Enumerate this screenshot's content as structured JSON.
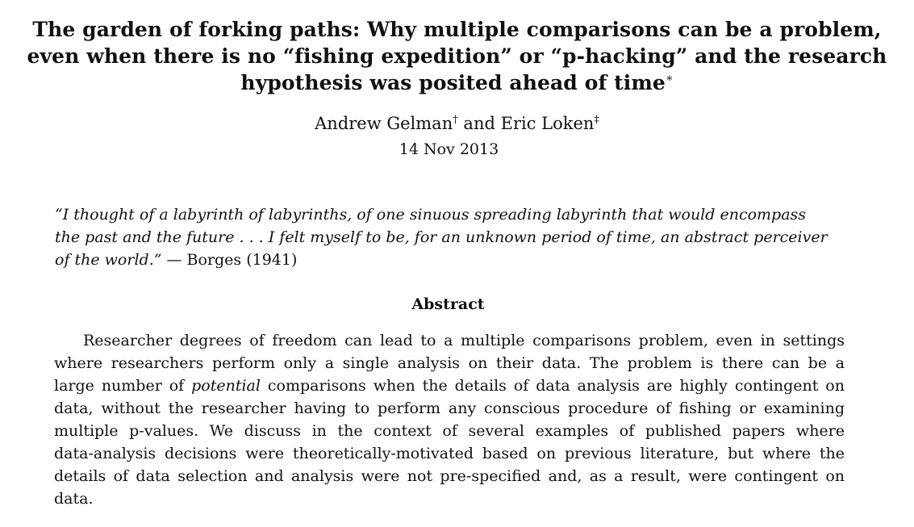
{
  "paper": {
    "title_lines": [
      "The garden of forking paths: Why multiple comparisons can be a problem,",
      "even when there is no “fishing expedition” or “p-hacking” and the research",
      "hypothesis was posited ahead of time"
    ],
    "title_mark": "∗",
    "authors": [
      {
        "name": "Andrew Gelman",
        "mark": "†"
      },
      {
        "name": "Eric Loken",
        "mark": "‡"
      }
    ],
    "author_joiner": "and",
    "date": "14 Nov 2013"
  },
  "epigraph": {
    "lines": [
      "“I thought of a labyrinth of labyrinths, of one sinuous spreading labyrinth that would encompass",
      "the past and the future . . . I felt myself to be, for an unknown period of time, an abstract perceiver",
      "of the world.”"
    ],
    "attribution": "— Borges (1941)"
  },
  "abstract": {
    "heading": "Abstract",
    "line_1": "Researcher degrees of freedom can lead to a multiple comparisons problem, even in settings",
    "line_2": "where researchers perform only a single analysis on their data.  The problem is there can be a",
    "line_3_before": "large number of",
    "line_3_emph": "potential",
    "line_3_after": "comparisons when the details of data analysis are highly contingent on",
    "line_4": "data, without the researcher having to perform any conscious procedure of fishing or examining",
    "line_5": "multiple p-values.  We discuss in the context of several examples of published papers where",
    "line_6": "data-analysis decisions were theoretically-motivated based on previous literature, but where the",
    "line_7": "details of data selection and analysis were not pre-specified and, as a result, were contingent on",
    "line_8": "data."
  }
}
